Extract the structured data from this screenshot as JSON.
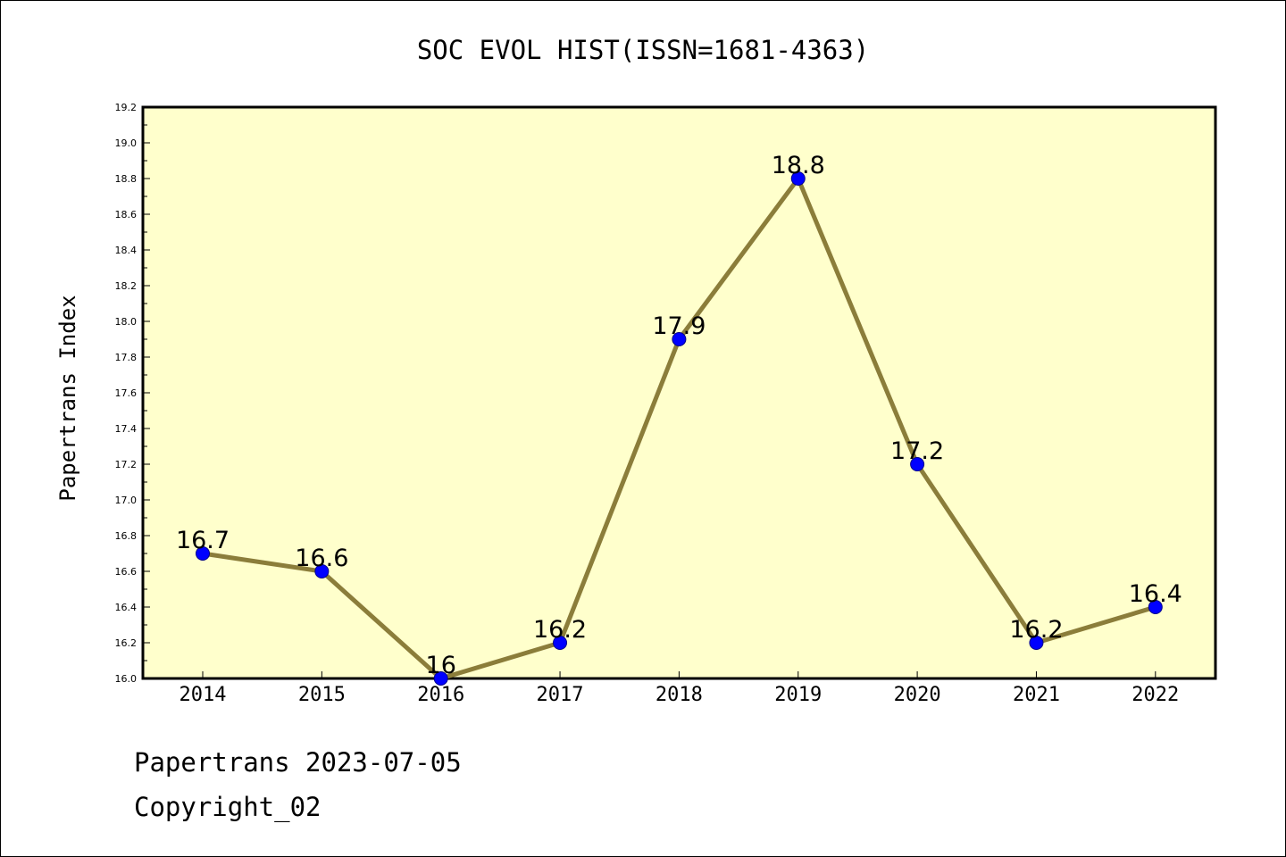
{
  "chart_data": {
    "type": "line",
    "title": "SOC EVOL HIST(ISSN=1681-4363)",
    "xlabel": "",
    "ylabel": "Papertrans Index",
    "categories": [
      "2014",
      "2015",
      "2016",
      "2017",
      "2018",
      "2019",
      "2020",
      "2021",
      "2022"
    ],
    "values": [
      16.7,
      16.6,
      16.0,
      16.2,
      17.9,
      18.8,
      17.2,
      16.2,
      16.4
    ],
    "data_labels": [
      "16.7",
      "16.6",
      "16",
      "16.2",
      "17.9",
      "18.8",
      "17.2",
      "16.2",
      "16.4"
    ],
    "ylim": [
      16.0,
      19.2
    ],
    "y_ticks": [
      "16.0",
      "16.2",
      "16.4",
      "16.6",
      "16.8",
      "17.0",
      "17.2",
      "17.4",
      "17.6",
      "17.8",
      "18.0",
      "18.2",
      "18.4",
      "18.6",
      "18.8",
      "19.0",
      "19.2"
    ],
    "grid": false,
    "legend": "none",
    "colors": {
      "plot_background": "#ffffcc",
      "line": "#8b7d3a",
      "marker_fill": "#0000ff",
      "marker_edge": "#00008b",
      "axis": "#000000"
    }
  },
  "footer": {
    "line1": "Papertrans 2023-07-05",
    "line2": "Copyright_02"
  }
}
